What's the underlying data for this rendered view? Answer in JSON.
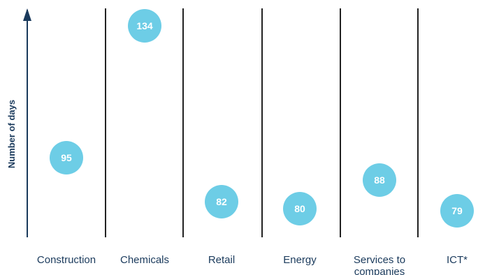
{
  "chart_data": {
    "type": "scatter",
    "title": "",
    "xlabel": "",
    "ylabel": "Number of days",
    "categories": [
      "Construction",
      "Chemicals",
      "Retail",
      "Energy",
      "Services to companies",
      "ICT*"
    ],
    "values": [
      95,
      134,
      82,
      80,
      88,
      79
    ],
    "data_labels": [
      "95",
      "134",
      "82",
      "80",
      "88",
      "79"
    ],
    "grid": false,
    "legend": "none",
    "colors": {
      "bubble": "#6dcde6",
      "bubble_text": "#ffffff",
      "axis": "#1a3a5c",
      "divider": "#222222",
      "text": "#1a3a5c"
    }
  }
}
